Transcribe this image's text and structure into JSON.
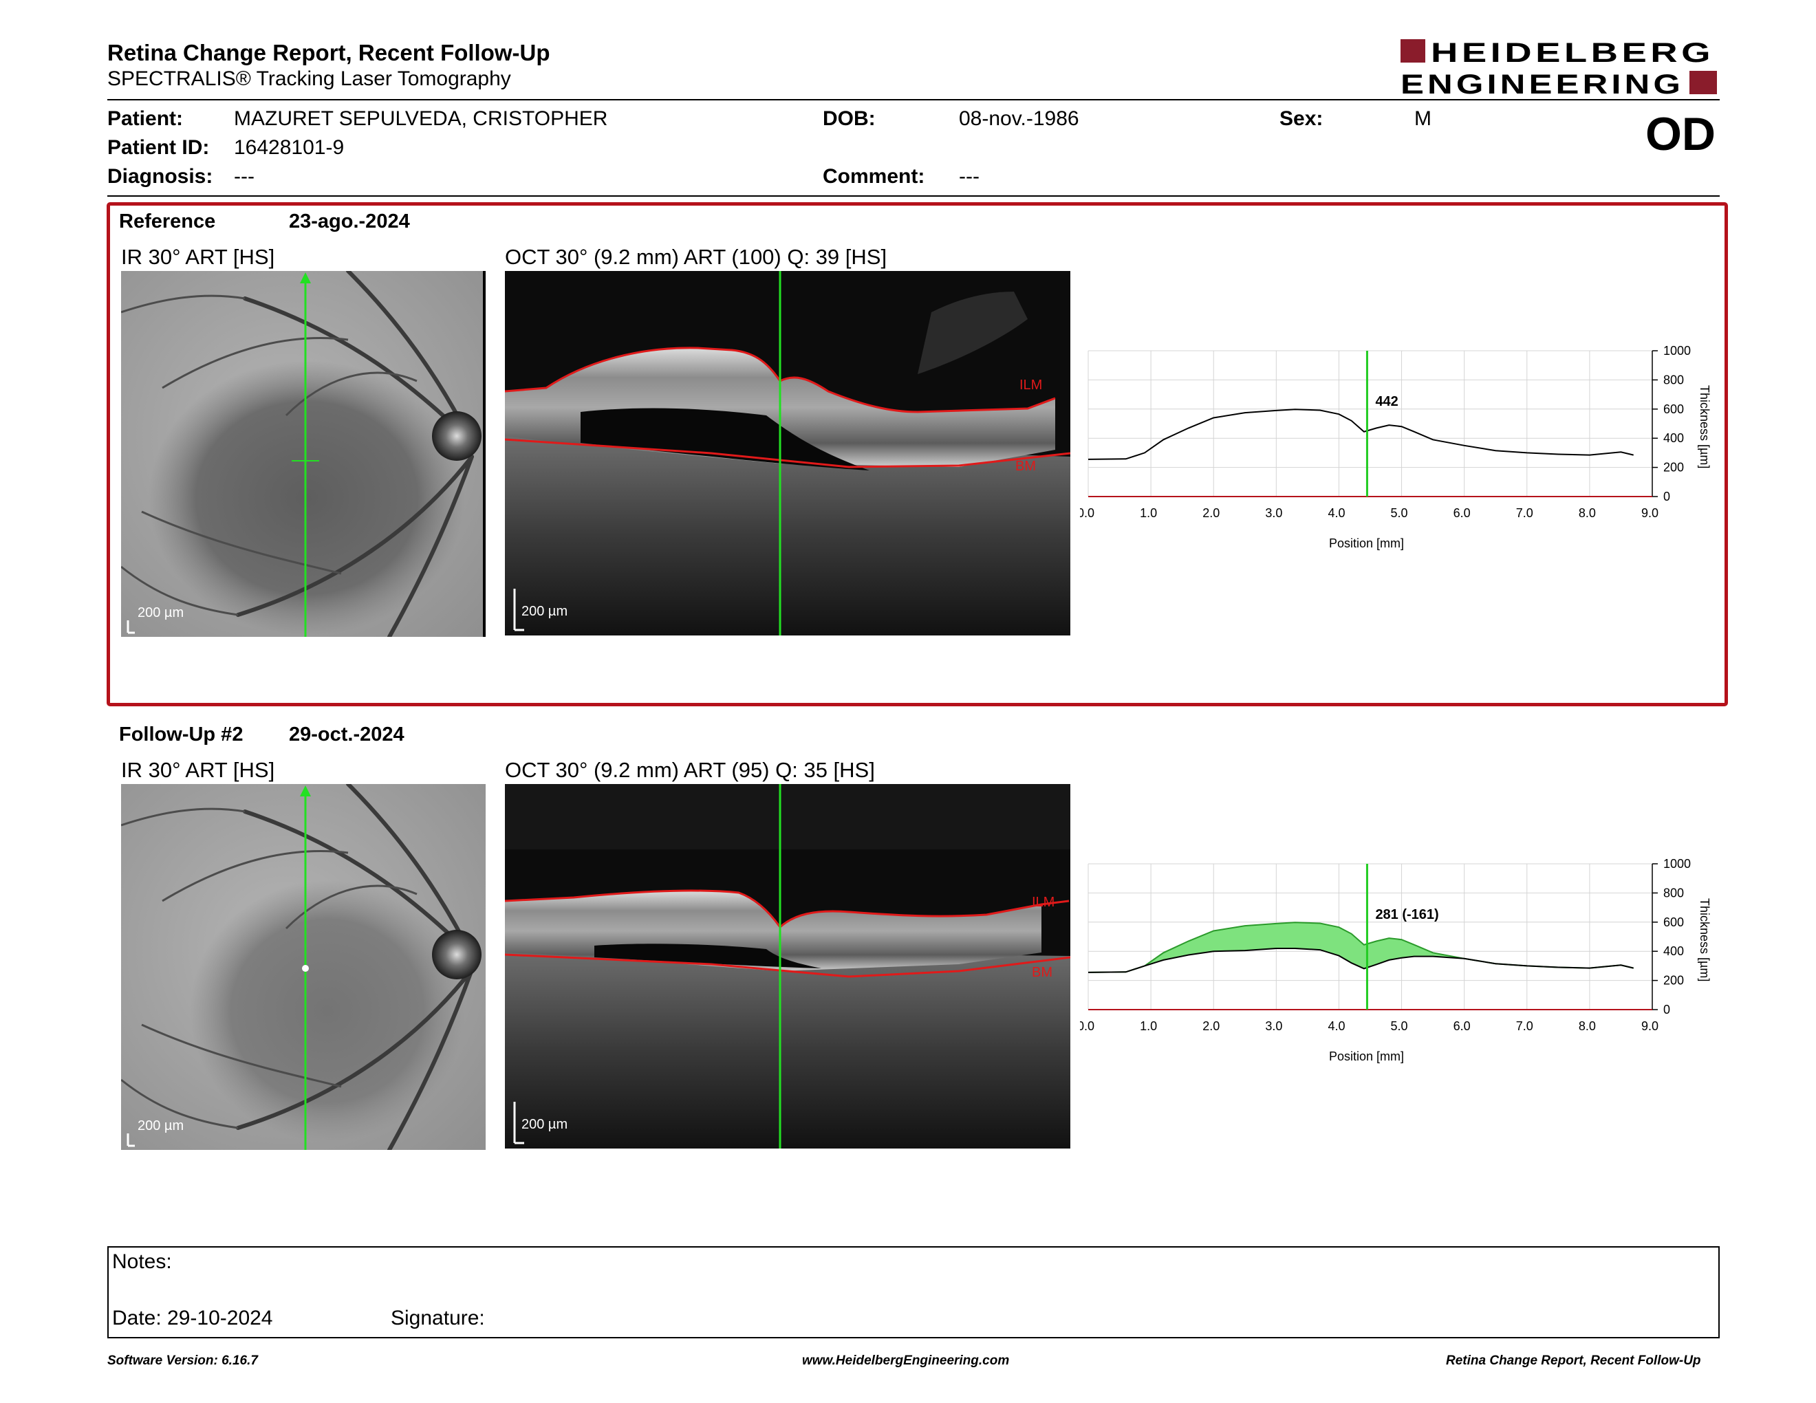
{
  "header": {
    "title": "Retina Change Report, Recent Follow-Up",
    "subtitle": "SPECTRALIS® Tracking Laser Tomography",
    "logo_line1": "HEIDELBERG",
    "logo_line2": "ENGINEERING",
    "brand_color": "#8a1c2b"
  },
  "patient": {
    "name_label": "Patient:",
    "name": "MAZURET SEPULVEDA, CRISTOPHER",
    "id_label": "Patient ID:",
    "id": "16428101-9",
    "diagnosis_label": "Diagnosis:",
    "diagnosis": "---",
    "dob_label": "DOB:",
    "dob": "08-nov.-1986",
    "comment_label": "Comment:",
    "comment": "---",
    "sex_label": "Sex:",
    "sex": "M",
    "eye": "OD"
  },
  "reference": {
    "label": "Reference",
    "date": "23-ago.-2024",
    "ir_caption": "IR 30° ART [HS]",
    "oct_caption": "OCT 30° (9.2 mm) ART (100) Q: 39 [HS]",
    "scale_label": "200 µm",
    "ilm_label": "ILM",
    "bm_label": "BM"
  },
  "followup": {
    "label": "Follow-Up #2",
    "date": "29-oct.-2024",
    "ir_caption": "IR 30° ART [HS]",
    "oct_caption": "OCT 30° (9.2 mm) ART (95) Q: 35 [HS]",
    "scale_label": "200 µm",
    "ilm_label": "ILM",
    "bm_label": "BM"
  },
  "chart_data": [
    {
      "type": "line",
      "xlabel": "Position [mm]",
      "ylabel": "Thickness [µm]",
      "xlim": [
        0,
        9
      ],
      "ylim": [
        0,
        1000
      ],
      "xticks": [
        "0.0",
        "1.0",
        "2.0",
        "3.0",
        "4.0",
        "5.0",
        "6.0",
        "7.0",
        "8.0",
        "9.0"
      ],
      "yticks": [
        "0",
        "200",
        "400",
        "600",
        "800",
        "1000"
      ],
      "grid": true,
      "marker_position": 4.45,
      "marker_label": "442",
      "series": [
        {
          "x": [
            0.0,
            0.6,
            0.9,
            1.2,
            1.6,
            2.0,
            2.5,
            3.0,
            3.3,
            3.7,
            4.0,
            4.2,
            4.4,
            4.6,
            4.8,
            5.0,
            5.2,
            5.5,
            6.0,
            6.5,
            7.0,
            7.5,
            8.0,
            8.5,
            8.7
          ],
          "y": [
            255,
            258,
            300,
            390,
            470,
            540,
            575,
            590,
            598,
            592,
            565,
            520,
            445,
            470,
            490,
            480,
            445,
            390,
            350,
            315,
            300,
            290,
            285,
            305,
            285
          ]
        }
      ]
    },
    {
      "type": "line",
      "xlabel": "Position [mm]",
      "ylabel": "Thickness [µm]",
      "xlim": [
        0,
        9
      ],
      "ylim": [
        0,
        1000
      ],
      "xticks": [
        "0.0",
        "1.0",
        "2.0",
        "3.0",
        "4.0",
        "5.0",
        "6.0",
        "7.0",
        "8.0",
        "9.0"
      ],
      "yticks": [
        "0",
        "200",
        "400",
        "600",
        "800",
        "1000"
      ],
      "grid": true,
      "marker_position": 4.45,
      "marker_label": "281 (-161)",
      "difference_fill_color": "#7ee27e",
      "series": [
        {
          "x": [
            0.0,
            0.6,
            0.9,
            1.2,
            1.6,
            2.0,
            2.5,
            3.0,
            3.3,
            3.7,
            4.0,
            4.2,
            4.4,
            4.6,
            4.8,
            5.0,
            5.2,
            5.5,
            6.0,
            6.5,
            7.0,
            7.5,
            8.0,
            8.5,
            8.7
          ],
          "y": [
            255,
            258,
            300,
            390,
            470,
            540,
            575,
            590,
            598,
            592,
            565,
            520,
            445,
            470,
            490,
            480,
            445,
            390,
            350,
            315,
            300,
            290,
            285,
            305,
            285
          ]
        },
        {
          "x": [
            0.0,
            0.6,
            0.9,
            1.2,
            1.6,
            2.0,
            2.5,
            3.0,
            3.3,
            3.7,
            4.0,
            4.2,
            4.4,
            4.6,
            4.8,
            5.0,
            5.2,
            5.5,
            6.0,
            6.5,
            7.0,
            7.5,
            8.0,
            8.5,
            8.7
          ],
          "y": [
            255,
            258,
            300,
            340,
            375,
            400,
            405,
            420,
            420,
            410,
            370,
            320,
            281,
            310,
            340,
            355,
            365,
            365,
            350,
            315,
            300,
            290,
            285,
            305,
            285
          ]
        }
      ]
    }
  ],
  "notes": {
    "label": "Notes:",
    "date_label": "Date: 29-10-2024",
    "signature_label": "Signature:"
  },
  "footer": {
    "software": "Software Version: 6.16.7",
    "website": "www.HeidelbergEngineering.com",
    "report_name": "Retina Change Report, Recent Follow-Up"
  }
}
